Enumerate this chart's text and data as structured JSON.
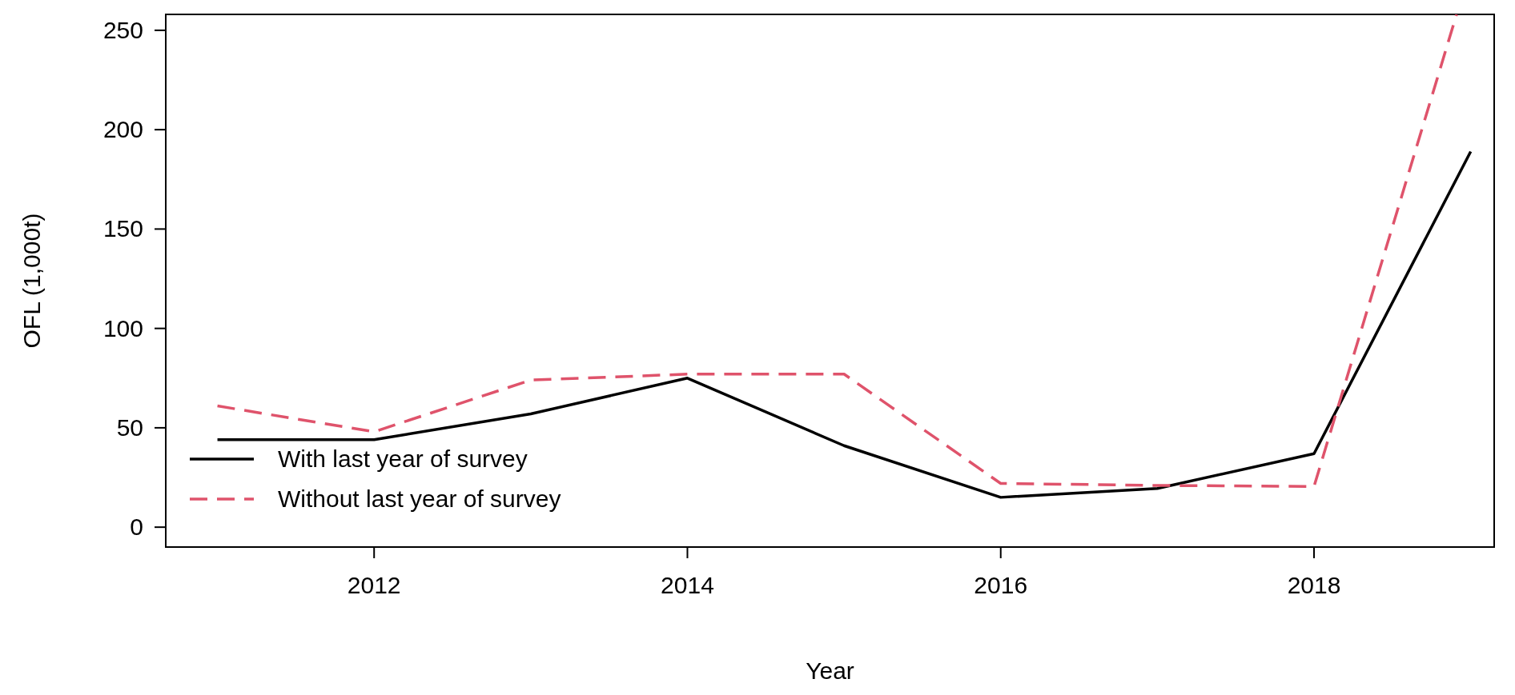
{
  "chart_data": {
    "type": "line",
    "xlabel": "Year",
    "ylabel": "OFL (1,000t)",
    "x": [
      2011,
      2012,
      2013,
      2014,
      2015,
      2016,
      2017,
      2018,
      2019
    ],
    "series": [
      {
        "name": "With last year of survey",
        "color": "#000000",
        "line_style": "solid",
        "values": [
          44,
          44,
          57,
          75,
          41,
          15,
          19.5,
          37,
          189
        ]
      },
      {
        "name": "Without last year of survey",
        "color": "#df536b",
        "line_style": "dashed",
        "x": [
          2011,
          2012,
          2013,
          2014,
          2015,
          2016,
          2017,
          2018,
          2018.91
        ],
        "values": [
          61,
          48,
          74,
          77,
          77,
          22,
          21,
          20.5,
          258
        ]
      }
    ],
    "xlim": [
      2010.67,
      2019.15
    ],
    "ylim": [
      -10,
      258
    ],
    "xticks": [
      2012,
      2014,
      2016,
      2018
    ],
    "yticks": [
      0,
      50,
      100,
      150,
      200,
      250
    ],
    "grid": false,
    "legend": "bottom left"
  }
}
